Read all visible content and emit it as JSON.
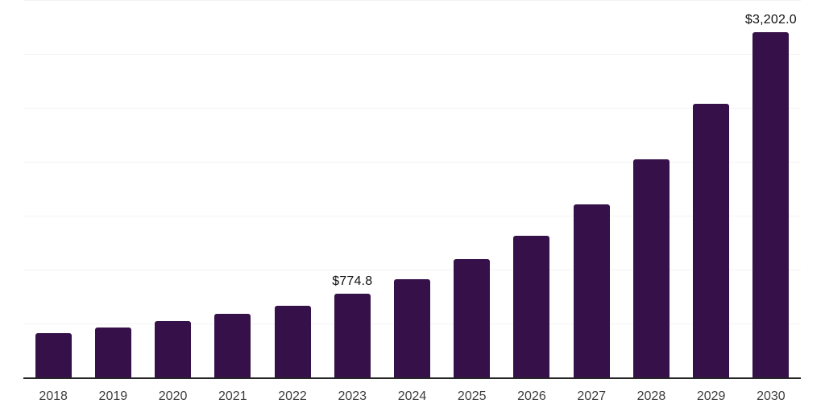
{
  "chart_data": {
    "type": "bar",
    "title": "",
    "xlabel": "",
    "ylabel": "",
    "categories": [
      "2018",
      "2019",
      "2020",
      "2021",
      "2022",
      "2023",
      "2024",
      "2025",
      "2026",
      "2027",
      "2028",
      "2029",
      "2030"
    ],
    "values": [
      412,
      464,
      521,
      593,
      668,
      774.8,
      912,
      1099,
      1310,
      1608,
      2019,
      2534,
      3202.0
    ],
    "data_labels": [
      null,
      null,
      null,
      null,
      null,
      "$774.8",
      null,
      null,
      null,
      null,
      null,
      null,
      "$3,202.0"
    ],
    "ylim": [
      0,
      3500
    ],
    "grid": true,
    "grid_step": 500,
    "legend_position": "none",
    "colors": {
      "bar": "#351049",
      "axis_line": "#262626",
      "gridline": "#f3f3f3",
      "data_label_text": "#111111",
      "tick_label_text": "#3d3d3d",
      "background": "#ffffff"
    }
  }
}
